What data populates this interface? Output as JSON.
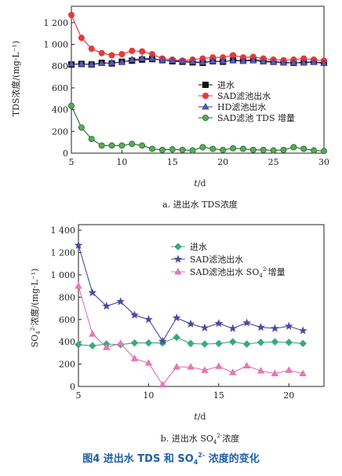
{
  "figure": {
    "caption_prefix": "图4  进出水 TDS 和 SO",
    "caption_sub": "4",
    "caption_sup": "2-",
    "caption_suffix": " 浓度的变化"
  },
  "chart_data": [
    {
      "type": "line",
      "title": "",
      "subcaption_text": "a. 进出水 TDS浓度",
      "xlabel_italic": "t",
      "xlabel_rest": "/d",
      "ylabel": "TDS浓度/(mg·L⁻¹)",
      "xlim": [
        5,
        30
      ],
      "ylim": [
        0,
        1350
      ],
      "xticks": [
        5,
        10,
        15,
        20,
        25,
        30
      ],
      "xtick_labels": [
        "5",
        "10",
        "15",
        "20",
        "25",
        "30"
      ],
      "yticks": [
        0,
        200,
        400,
        600,
        800,
        1000,
        1200
      ],
      "ytick_labels": [
        "0",
        "200",
        "400",
        "600",
        "800",
        "1 000",
        "1 200"
      ],
      "legend_position": "center-right",
      "x": [
        5,
        6,
        7,
        8,
        9,
        10,
        11,
        12,
        13,
        14,
        15,
        16,
        17,
        18,
        19,
        20,
        21,
        22,
        23,
        24,
        25,
        26,
        27,
        28,
        29,
        30
      ],
      "series": [
        {
          "name": "进水",
          "marker": "square",
          "color": "#111111",
          "fill": "#111111",
          "values": [
            815,
            820,
            815,
            830,
            825,
            840,
            850,
            860,
            865,
            855,
            845,
            840,
            835,
            830,
            845,
            840,
            855,
            850,
            860,
            850,
            840,
            835,
            830,
            835,
            840,
            830
          ]
        },
        {
          "name": "SAD滤池出水",
          "marker": "circle",
          "color": "#e03030",
          "fill": "#e83a3a",
          "values": [
            1270,
            1060,
            960,
            920,
            900,
            910,
            940,
            935,
            910,
            870,
            860,
            850,
            860,
            870,
            880,
            880,
            900,
            880,
            885,
            870,
            860,
            855,
            860,
            870,
            860,
            850
          ]
        },
        {
          "name": "HD滤池出水",
          "marker": "triangle",
          "color": "#3a3a9a",
          "fill": "#5a5ab8",
          "values": [
            820,
            820,
            815,
            825,
            830,
            835,
            860,
            870,
            870,
            855,
            850,
            845,
            840,
            835,
            845,
            845,
            850,
            845,
            850,
            840,
            835,
            830,
            830,
            830,
            835,
            825
          ]
        },
        {
          "name": "SAD滤池 TDS 增量",
          "marker": "circle",
          "color": "#1f6b2a",
          "fill": "#5aaa55",
          "values": [
            435,
            235,
            130,
            70,
            70,
            70,
            85,
            70,
            40,
            30,
            35,
            30,
            25,
            55,
            40,
            30,
            45,
            40,
            30,
            30,
            25,
            30,
            55,
            40,
            25,
            20
          ]
        }
      ]
    },
    {
      "type": "line",
      "title": "",
      "subcaption_prefix": "b. 进出水 SO",
      "subcaption_sub": "4",
      "subcaption_sup": "2-",
      "subcaption_suffix": "浓度",
      "xlabel_italic": "t",
      "xlabel_rest": "/d",
      "ylabel_prefix": "SO",
      "ylabel_sub": "4",
      "ylabel_sup": "2-",
      "ylabel_suffix": "浓度/(mg·L⁻¹)",
      "xlim": [
        5,
        22.5
      ],
      "ylim": [
        0,
        1450
      ],
      "xticks": [
        5,
        10,
        15,
        20
      ],
      "xtick_labels": [
        "5",
        "10",
        "15",
        "20"
      ],
      "yticks": [
        0,
        200,
        400,
        600,
        800,
        1000,
        1200,
        1400
      ],
      "ytick_labels": [
        "0",
        "200",
        "400",
        "600",
        "800",
        "1 000",
        "1 200",
        "1 400"
      ],
      "legend_position": "top-right",
      "x": [
        5,
        6,
        7,
        8,
        9,
        10,
        11,
        12,
        13,
        14,
        15,
        16,
        17,
        18,
        19,
        20,
        21
      ],
      "series": [
        {
          "name": "进水",
          "marker": "diamond",
          "color": "#3aa980",
          "fill": "#3aa980",
          "values": [
            375,
            365,
            380,
            375,
            390,
            390,
            390,
            440,
            385,
            380,
            385,
            400,
            380,
            395,
            400,
            395,
            385
          ]
        },
        {
          "name": "SAD滤池出水",
          "marker": "star",
          "color": "#4a4aa0",
          "fill": "#4a4aa0",
          "values": [
            1265,
            840,
            720,
            760,
            640,
            600,
            405,
            615,
            560,
            525,
            565,
            520,
            570,
            530,
            520,
            540,
            500
          ]
        },
        {
          "name_prefix": "SAD滤池出水 SO",
          "name_sub": "4",
          "name_sup": "2-",
          "name_suffix": "增量",
          "marker": "triangle",
          "color": "#e070b0",
          "fill": "#e878b8",
          "values": [
            900,
            470,
            350,
            385,
            250,
            210,
            15,
            175,
            175,
            145,
            180,
            125,
            185,
            140,
            115,
            145,
            115
          ]
        }
      ]
    }
  ]
}
